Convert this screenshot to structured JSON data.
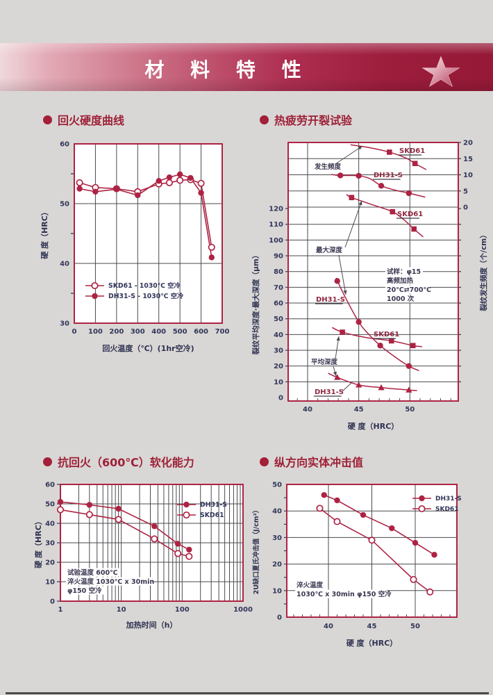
{
  "page": {
    "bg": "#d9d7d5"
  },
  "banner": {
    "title": "材 料 特 性"
  },
  "colors": {
    "red": "#ad2343",
    "grid": "#4a4a4e",
    "tick": "#32365a",
    "axis": "#2e3252",
    "ann": "#3d3650",
    "curve_label": "#8f2840",
    "leader": "#4b4b4d",
    "title": "#9e2138",
    "banner_dark": "#951937",
    "banner_light": "#f0d8dc"
  },
  "chart_data": [
    {
      "id": "tempering-hardness-curve",
      "type": "line",
      "title": "回火硬度曲线",
      "xlabel": "回火温度（℃）(1hr空冷)",
      "ylabel": "硬 度（HRC）",
      "xlim": [
        0,
        700
      ],
      "ylim": [
        30,
        60
      ],
      "xticks": [
        0,
        100,
        200,
        300,
        400,
        500,
        600,
        700
      ],
      "yticks": [
        30,
        40,
        50,
        60
      ],
      "grid": "on",
      "legend_position": "inside-bottom-left",
      "series": [
        {
          "name": "SKD61 - 1030℃ 空冷",
          "marker": "circle-open",
          "x": [
            25,
            100,
            200,
            300,
            400,
            450,
            500,
            550,
            600,
            650
          ],
          "y": [
            53.5,
            52.7,
            52.5,
            52.0,
            53.3,
            53.5,
            53.9,
            54.0,
            53.4,
            42.7
          ]
        },
        {
          "name": "DH31-S - 1030℃ 空冷",
          "marker": "circle-filled",
          "x": [
            25,
            100,
            200,
            300,
            400,
            450,
            500,
            550,
            600,
            650
          ],
          "y": [
            52.5,
            52.0,
            52.4,
            51.4,
            53.8,
            54.4,
            54.9,
            54.3,
            51.8,
            41.0
          ]
        }
      ]
    },
    {
      "id": "thermal-fatigue-crack-test",
      "type": "line",
      "title": "热疲劳开裂试验",
      "xlabel": "硬 度（HRC）",
      "ylabel_left": "裂纹平均深度·最大深度（μm）",
      "ylabel_right": "裂纹发生频度（个/cm）",
      "xlim": [
        38.4,
        54.7
      ],
      "xticks": [
        40,
        45,
        50
      ],
      "ylim_left": [
        0,
        120
      ],
      "yticks_left": [
        0,
        10,
        20,
        30,
        40,
        50,
        60,
        70,
        80,
        90,
        100,
        110,
        120
      ],
      "ylim_right": [
        0,
        20
      ],
      "yticks_right": [
        0,
        5,
        10,
        15,
        20
      ],
      "grid": "on",
      "callouts": [
        "发生频度",
        "最大深度",
        "平均深度"
      ],
      "note_lines": [
        "试样：φ15",
        "高频加热",
        "20℃⇄700℃",
        "1000 次"
      ],
      "series": [
        {
          "name": "SKD61",
          "group": "发生频度",
          "axis": "right",
          "marker": "square",
          "curve": [
            [
              44.2,
              19.3
            ],
            [
              46.2,
              18.3
            ],
            [
              48.0,
              17.0
            ],
            [
              49.6,
              15.2
            ],
            [
              50.5,
              13.5
            ],
            [
              51.6,
              11.6
            ]
          ],
          "points": [
            [
              48.0,
              17.0
            ],
            [
              50.5,
              13.5
            ]
          ]
        },
        {
          "name": "DH31-S",
          "group": "发生频度",
          "axis": "right",
          "marker": "circle-filled",
          "curve": [
            [
              42.3,
              10.1
            ],
            [
              43.2,
              9.8
            ],
            [
              45.0,
              9.7
            ],
            [
              46.1,
              8.8
            ],
            [
              47.2,
              6.6
            ],
            [
              48.5,
              5.3
            ],
            [
              49.9,
              4.3
            ],
            [
              51.5,
              3.1
            ]
          ],
          "points": [
            [
              43.2,
              9.8
            ],
            [
              45.0,
              9.7
            ],
            [
              47.2,
              6.6
            ],
            [
              49.9,
              4.3
            ]
          ]
        },
        {
          "name": "SKD61",
          "group": "最大深度",
          "axis": "left",
          "marker": "square",
          "curve": [
            [
              43.8,
              129
            ],
            [
              44.3,
              127
            ],
            [
              46.3,
              122.5
            ],
            [
              48.3,
              118
            ],
            [
              49.4,
              113
            ],
            [
              50.4,
              107
            ],
            [
              51.3,
              102
            ]
          ],
          "points": [
            [
              44.3,
              127
            ],
            [
              48.3,
              118
            ],
            [
              50.4,
              107
            ]
          ]
        },
        {
          "name": "DH31-S",
          "group": "最大深度",
          "axis": "left",
          "marker": "circle-filled",
          "curve": [
            [
              42.8,
              76
            ],
            [
              43.5,
              66
            ],
            [
              45.0,
              48
            ],
            [
              46.0,
              40
            ],
            [
              47.1,
              33
            ],
            [
              48.5,
              26
            ],
            [
              49.9,
              20
            ],
            [
              50.9,
              17
            ]
          ],
          "points": [
            [
              42.9,
              74
            ],
            [
              45.0,
              48
            ],
            [
              47.1,
              33
            ],
            [
              49.9,
              20
            ]
          ]
        },
        {
          "name": "SKD61",
          "group": "平均深度",
          "axis": "left",
          "marker": "square",
          "curve": [
            [
              42.4,
              44.5
            ],
            [
              43.4,
              41.5
            ],
            [
              45.8,
              38.0
            ],
            [
              48.2,
              36.0
            ],
            [
              50.3,
              33.0
            ],
            [
              51.2,
              32.3
            ]
          ],
          "points": [
            [
              43.4,
              41.5
            ],
            [
              48.2,
              36.0
            ],
            [
              50.3,
              33.0
            ]
          ]
        },
        {
          "name": "DH31-S",
          "group": "平均深度",
          "axis": "left",
          "marker": "triangle",
          "curve": [
            [
              42.0,
              15.5
            ],
            [
              42.9,
              12.8
            ],
            [
              45.0,
              8.0
            ],
            [
              47.2,
              6.3
            ],
            [
              49.9,
              4.8
            ],
            [
              50.7,
              4.4
            ]
          ],
          "points": [
            [
              42.9,
              12.8
            ],
            [
              45.0,
              8.0
            ],
            [
              47.2,
              6.3
            ],
            [
              49.9,
              4.8
            ]
          ]
        }
      ]
    },
    {
      "id": "temper-softening-resistance",
      "type": "line-logx",
      "title": "抗回火（600℃）软化能力",
      "xlabel": "加热时间（h）",
      "ylabel": "硬 度（HRC）",
      "xlim": [
        1,
        1000
      ],
      "xticks": [
        1,
        10,
        100,
        1000
      ],
      "ylim": [
        0,
        60
      ],
      "yticks": [
        0,
        10,
        20,
        30,
        40,
        50,
        60
      ],
      "grid": "on",
      "legend_position": "inside-top-right",
      "note_lines": [
        "试验温度 600℃",
        "淬火温度 1030℃ x 30min",
        "φ150 空冷"
      ],
      "series": [
        {
          "name": "DH31-S",
          "marker": "circle-filled",
          "x": [
            1,
            3,
            9,
            35,
            85,
            130
          ],
          "y": [
            51,
            49.5,
            47.5,
            38.5,
            29.5,
            26.5
          ]
        },
        {
          "name": "SKD61",
          "marker": "circle-open",
          "x": [
            1,
            3,
            9,
            35,
            85,
            130
          ],
          "y": [
            47,
            44.5,
            42,
            32,
            24.5,
            23
          ]
        }
      ]
    },
    {
      "id": "longitudinal-impact-value",
      "type": "line",
      "title": "纵方向实体冲击值",
      "xlabel": "硬 度（HRC）",
      "ylabel": "2U缺口夏氏冲击值（J/cm²）",
      "xlim": [
        35.2,
        54.8
      ],
      "xticks": [
        40,
        45,
        50
      ],
      "ylim": [
        0,
        50
      ],
      "yticks": [
        0,
        10,
        20,
        30,
        40,
        50
      ],
      "grid": "on",
      "legend_position": "inside-top-right",
      "note_lines": [
        "淬火温度",
        "1030℃ x 30min φ150 空冷"
      ],
      "series": [
        {
          "name": "DH31-S",
          "marker": "circle-filled",
          "x": [
            39.5,
            41,
            44,
            47.3,
            50,
            52.2
          ],
          "y": [
            46,
            44,
            38.5,
            33.5,
            28,
            23.5
          ]
        },
        {
          "name": "SKD61",
          "marker": "circle-open",
          "x": [
            39,
            41,
            45,
            49.8,
            51.7
          ],
          "y": [
            41,
            36,
            29,
            14.2,
            9.5
          ]
        }
      ]
    }
  ]
}
